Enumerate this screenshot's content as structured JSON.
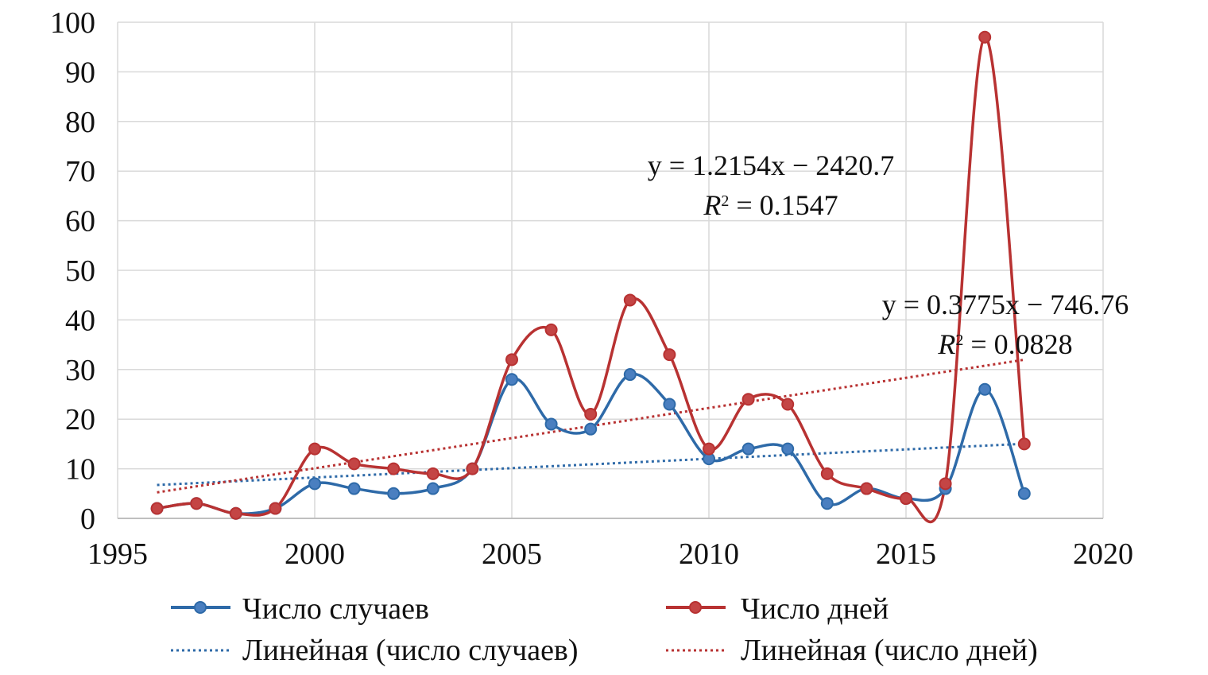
{
  "chart_data": {
    "type": "line",
    "title": "",
    "xlabel": "",
    "ylabel": "",
    "xlim": [
      1995,
      2020
    ],
    "ylim": [
      0,
      100
    ],
    "x_ticks": [
      1995,
      2000,
      2005,
      2010,
      2015,
      2020
    ],
    "y_ticks": [
      0,
      10,
      20,
      30,
      40,
      50,
      60,
      70,
      80,
      90,
      100
    ],
    "grid": true,
    "legend_position": "bottom",
    "x": [
      1996,
      1997,
      1998,
      1999,
      2000,
      2001,
      2002,
      2003,
      2004,
      2005,
      2006,
      2007,
      2008,
      2009,
      2010,
      2011,
      2012,
      2013,
      2014,
      2015,
      2016,
      2017,
      2018
    ],
    "series": [
      {
        "name": "Число случаев",
        "color": "#2e6aa8",
        "marker_color": "#4a7fc0",
        "values": [
          2,
          3,
          1,
          2,
          7,
          6,
          5,
          6,
          10,
          28,
          19,
          18,
          29,
          23,
          12,
          14,
          14,
          3,
          6,
          4,
          6,
          26,
          5
        ]
      },
      {
        "name": "Число дней",
        "color": "#b83232",
        "marker_color": "#c44545",
        "values": [
          2,
          3,
          1,
          2,
          14,
          11,
          10,
          9,
          10,
          32,
          38,
          21,
          44,
          33,
          14,
          24,
          23,
          9,
          6,
          4,
          7,
          97,
          15
        ]
      }
    ],
    "trendlines": [
      {
        "name": "Линейная (число случаев)",
        "color": "#2e6aa8",
        "slope": 0.3775,
        "intercept": -746.76,
        "x_range": [
          1996,
          2018
        ],
        "equation": "y = 0.3775x − 746.76",
        "r2_label": "R",
        "r2_sup": "2",
        "r2_value": " = 0.0828"
      },
      {
        "name": "Линейная (число дней)",
        "color": "#b83232",
        "slope": 1.2154,
        "intercept": -2420.7,
        "x_range": [
          1996,
          2018
        ],
        "equation": "y = 1.2154x − 2420.7",
        "r2_label": "R",
        "r2_sup": "2",
        "r2_value": " = 0.1547"
      }
    ]
  }
}
